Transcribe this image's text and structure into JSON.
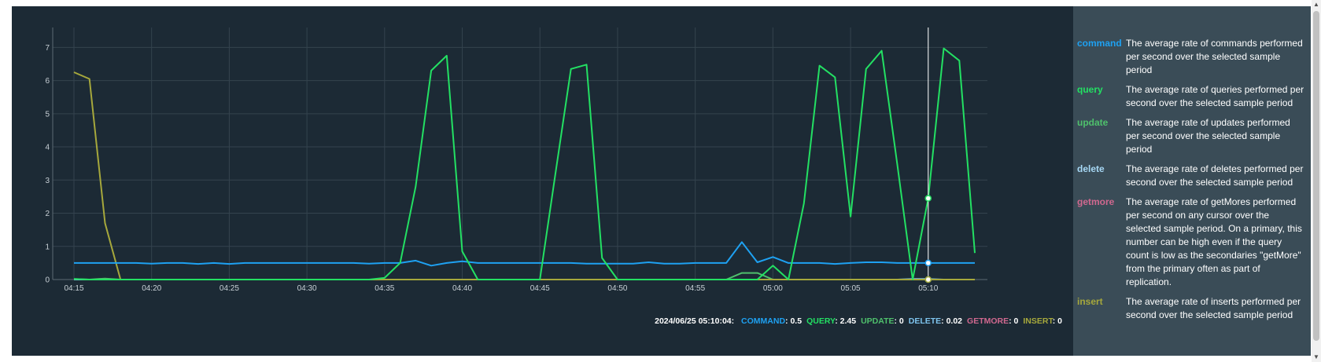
{
  "chart_data": {
    "type": "line",
    "x": [
      "04:15",
      "04:16",
      "04:17",
      "04:18",
      "04:19",
      "04:20",
      "04:21",
      "04:22",
      "04:23",
      "04:24",
      "04:25",
      "04:26",
      "04:27",
      "04:28",
      "04:29",
      "04:30",
      "04:31",
      "04:32",
      "04:33",
      "04:34",
      "04:35",
      "04:36",
      "04:37",
      "04:38",
      "04:39",
      "04:40",
      "04:41",
      "04:42",
      "04:43",
      "04:44",
      "04:45",
      "04:46",
      "04:47",
      "04:48",
      "04:49",
      "04:50",
      "04:51",
      "04:52",
      "04:53",
      "04:54",
      "04:55",
      "04:56",
      "04:57",
      "04:58",
      "04:59",
      "05:00",
      "05:01",
      "05:02",
      "05:03",
      "05:04",
      "05:05",
      "05:06",
      "05:07",
      "05:08",
      "05:09",
      "05:10",
      "05:11",
      "05:12",
      "05:13"
    ],
    "xticks": [
      "04:15",
      "04:20",
      "04:25",
      "04:30",
      "04:35",
      "04:40",
      "04:45",
      "04:50",
      "04:55",
      "05:00",
      "05:05",
      "05:10"
    ],
    "ylim": [
      0,
      7.6
    ],
    "yticks": [
      "0",
      "1",
      "2",
      "3",
      "4",
      "5",
      "6",
      "7"
    ],
    "series": [
      {
        "name": "command",
        "color": "#1ea1f2",
        "values": [
          0.5,
          0.5,
          0.5,
          0.5,
          0.5,
          0.48,
          0.5,
          0.5,
          0.47,
          0.5,
          0.47,
          0.5,
          0.5,
          0.5,
          0.5,
          0.5,
          0.5,
          0.5,
          0.5,
          0.48,
          0.5,
          0.5,
          0.57,
          0.42,
          0.5,
          0.55,
          0.5,
          0.5,
          0.5,
          0.5,
          0.5,
          0.5,
          0.5,
          0.48,
          0.48,
          0.48,
          0.48,
          0.52,
          0.48,
          0.48,
          0.5,
          0.5,
          0.5,
          1.13,
          0.52,
          0.68,
          0.5,
          0.5,
          0.5,
          0.47,
          0.5,
          0.52,
          0.52,
          0.5,
          0.5,
          0.5,
          0.5,
          0.5,
          0.5
        ]
      },
      {
        "name": "query",
        "color": "#23e063",
        "values": [
          0.02,
          0,
          0,
          0,
          0,
          0,
          0,
          0,
          0,
          0,
          0,
          0,
          0,
          0,
          0,
          0,
          0,
          0,
          0,
          0,
          0.05,
          0.5,
          2.8,
          6.3,
          6.75,
          0.85,
          0,
          0,
          0,
          0,
          0,
          3.2,
          6.35,
          6.48,
          0.65,
          0,
          0,
          0,
          0,
          0,
          0,
          0,
          0,
          0,
          0,
          0.42,
          0,
          2.3,
          6.45,
          6.1,
          1.9,
          6.35,
          6.9,
          3.5,
          0,
          2.45,
          6.97,
          6.6,
          0.8
        ]
      },
      {
        "name": "update",
        "color": "#4fc06c",
        "values": [
          0.02,
          0,
          0.03,
          0,
          0,
          0,
          0,
          0,
          0,
          0,
          0,
          0,
          0,
          0,
          0,
          0,
          0,
          0,
          0,
          0,
          0,
          0,
          0,
          0,
          0,
          0,
          0,
          0,
          0,
          0,
          0,
          0,
          0,
          0,
          0,
          0,
          0,
          0,
          0,
          0,
          0,
          0,
          0,
          0.2,
          0.2,
          0,
          0,
          0,
          0,
          0,
          0,
          0,
          0,
          0,
          0,
          0,
          0,
          0,
          0
        ]
      },
      {
        "name": "delete",
        "color": "#7ec4ee",
        "values": [
          0,
          0,
          0,
          0,
          0,
          0,
          0,
          0,
          0,
          0,
          0,
          0,
          0,
          0,
          0,
          0,
          0,
          0,
          0,
          0,
          0,
          0,
          0,
          0,
          0,
          0,
          0,
          0,
          0,
          0,
          0,
          0,
          0,
          0,
          0,
          0,
          0,
          0,
          0,
          0,
          0,
          0,
          0,
          0,
          0,
          0,
          0,
          0,
          0,
          0,
          0,
          0,
          0,
          0,
          0.02,
          0.02,
          0,
          0,
          0
        ]
      },
      {
        "name": "getmore",
        "color": "#d0688f",
        "values": [
          0,
          0,
          0,
          0,
          0,
          0,
          0,
          0,
          0,
          0,
          0,
          0,
          0,
          0,
          0,
          0,
          0,
          0,
          0,
          0,
          0,
          0,
          0,
          0,
          0,
          0,
          0,
          0,
          0,
          0,
          0,
          0,
          0,
          0,
          0,
          0,
          0,
          0,
          0,
          0,
          0,
          0,
          0,
          0,
          0,
          0,
          0,
          0,
          0,
          0,
          0,
          0,
          0,
          0,
          0,
          0,
          0,
          0,
          0
        ]
      },
      {
        "name": "insert",
        "color": "#a6a83c",
        "values": [
          6.25,
          6.05,
          1.7,
          0,
          0,
          0,
          0,
          0,
          0,
          0,
          0,
          0,
          0,
          0,
          0,
          0,
          0,
          0,
          0,
          0,
          0,
          0,
          0,
          0,
          0,
          0,
          0,
          0,
          0,
          0,
          0,
          0,
          0,
          0,
          0,
          0,
          0,
          0,
          0,
          0,
          0,
          0,
          0,
          0,
          0,
          0,
          0,
          0,
          0,
          0,
          0,
          0,
          0,
          0,
          0,
          0,
          0,
          0,
          0
        ]
      }
    ],
    "cursor": {
      "x": "05:10"
    },
    "grid": true
  },
  "readout": {
    "timestamp": "2024/06/25 05:10:04:",
    "items": [
      {
        "label": "COMMAND",
        "value": ": 0.5",
        "color": "#1ea1f2"
      },
      {
        "label": "QUERY",
        "value": ": 2.45",
        "color": "#23e063"
      },
      {
        "label": "UPDATE",
        "value": ": 0",
        "color": "#4fc06c"
      },
      {
        "label": "DELETE",
        "value": ": 0.02",
        "color": "#7ec4ee"
      },
      {
        "label": "GETMORE",
        "value": ": 0",
        "color": "#d0688f"
      },
      {
        "label": "INSERT",
        "value": ": 0",
        "color": "#a6a83c"
      }
    ]
  },
  "legend": [
    {
      "key": "command",
      "color": "#1ea1f2",
      "desc": "The average rate of commands performed per second over the selected sample period"
    },
    {
      "key": "query",
      "color": "#23e063",
      "desc": "The average rate of queries performed per second over the selected sample period"
    },
    {
      "key": "update",
      "color": "#4fc06c",
      "desc": "The average rate of updates performed per second over the selected sample period"
    },
    {
      "key": "delete",
      "color": "#a7d8f5",
      "desc": "The average rate of deletes performed per second over the selected sample period"
    },
    {
      "key": "getmore",
      "color": "#d0688f",
      "desc": "The average rate of getMores performed per second on any cursor over the selected sample period. On a primary, this number can be high even if the query count is low as the secondaries \"getMore\" from the primary often as part of replication."
    },
    {
      "key": "insert",
      "color": "#a6a83c",
      "desc": "The average rate of inserts performed per second over the selected sample period"
    }
  ]
}
